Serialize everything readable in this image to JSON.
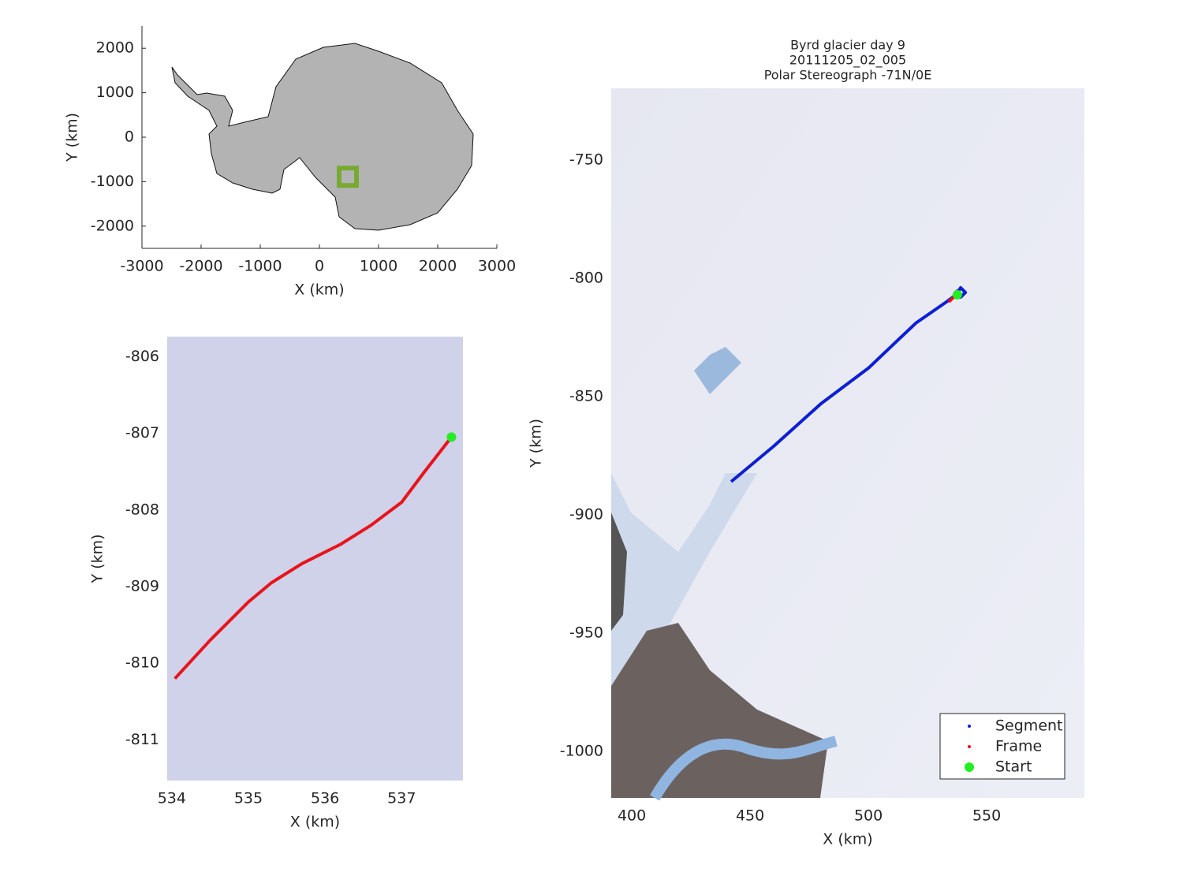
{
  "chart_data": [
    {
      "type": "map",
      "xlabel": "X (km)",
      "ylabel": "Y (km)",
      "xlim": [
        -3000,
        3000
      ],
      "ylim": [
        -2500,
        2500
      ],
      "xticks": [
        -3000,
        -2000,
        -1000,
        0,
        1000,
        2000,
        3000
      ],
      "yticks": [
        -2000,
        -1000,
        0,
        1000,
        2000
      ],
      "marker": {
        "x": 480,
        "y": -890,
        "color": "#77aa33"
      }
    },
    {
      "type": "line",
      "xlabel": "X (km)",
      "ylabel": "Y (km)",
      "xlim": [
        533.94,
        537.8
      ],
      "ylim": [
        -811.53,
        -805.74
      ],
      "xticks": [
        534,
        535,
        536,
        537
      ],
      "yticks": [
        -811,
        -810,
        -809,
        -808,
        -807,
        -806
      ],
      "series": [
        {
          "color": "#e8141b",
          "x": [
            534.04,
            534.5,
            535,
            535.3,
            535.7,
            536.2,
            536.6,
            537,
            537.3,
            537.65
          ],
          "values": [
            -810.2,
            -809.7,
            -809.2,
            -808.95,
            -808.7,
            -808.45,
            -808.2,
            -807.9,
            -807.5,
            -807.05
          ]
        },
        {
          "color": "#22ee22",
          "marker": true,
          "x": [
            537.65
          ],
          "values": [
            -807.05
          ]
        }
      ]
    },
    {
      "type": "line",
      "title": [
        "Byrd glacier day 9",
        "20111205_02_005",
        "Polar Stereograph -71N/0E"
      ],
      "xlabel": "X (km)",
      "ylabel": "Y (km)",
      "xlim": [
        391.3,
        591.3
      ],
      "ylim": [
        -1019.7,
        -719.7
      ],
      "xticks": [
        400,
        450,
        500,
        550
      ],
      "yticks": [
        -1000,
        -950,
        -900,
        -850,
        -800,
        -750
      ],
      "legend": "lower right",
      "series": [
        {
          "name": "Segment",
          "color": "#0b1fd4",
          "x": [
            442,
            460,
            480,
            500,
            520,
            533,
            537,
            539,
            541,
            539,
            537
          ],
          "values": [
            -886,
            -871,
            -853,
            -838,
            -819,
            -810,
            -807,
            -804,
            -806,
            -808,
            -805
          ]
        },
        {
          "name": "Frame",
          "color": "#e8141b",
          "x": [
            534,
            535.5,
            537.5
          ],
          "values": [
            -810,
            -808.5,
            -807
          ]
        },
        {
          "name": "Start",
          "color": "#22ee22",
          "marker": true,
          "x": [
            537.6
          ],
          "values": [
            -807
          ]
        }
      ]
    }
  ]
}
